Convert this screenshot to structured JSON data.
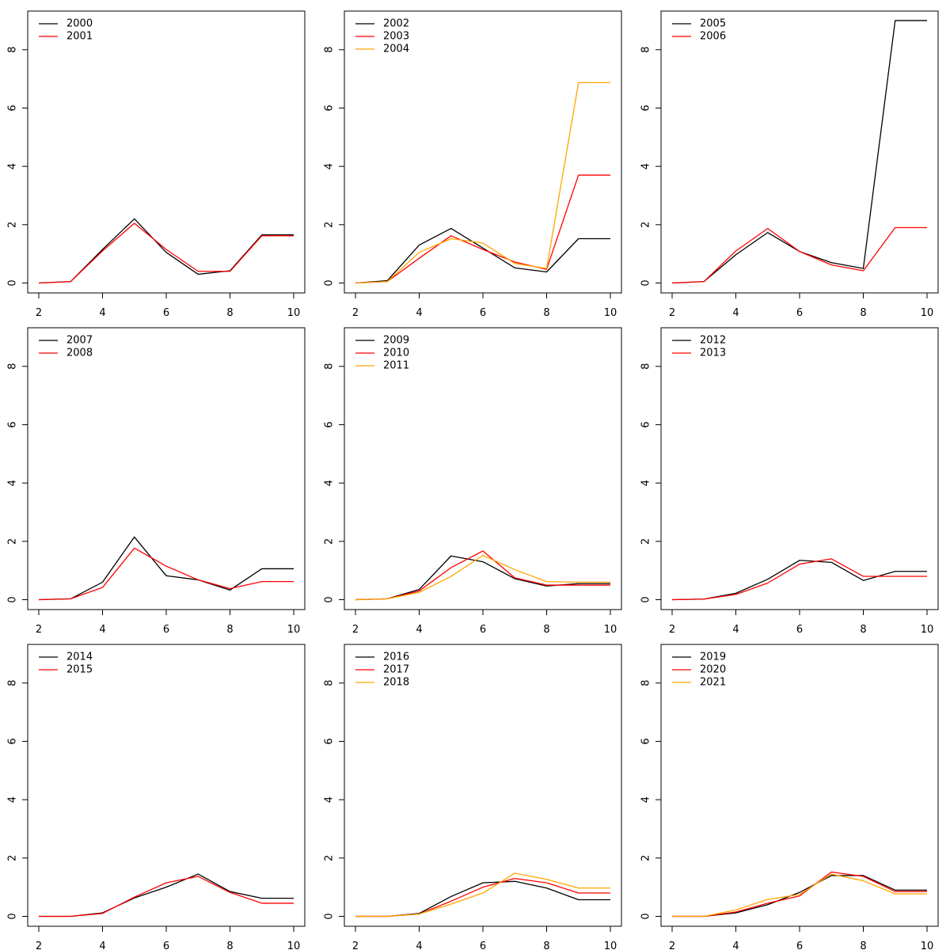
{
  "colors": {
    "black": "#000000",
    "red": "#ff0000",
    "orange": "#ffa500"
  },
  "chart_data": [
    {
      "type": "line",
      "xlim": [
        2,
        10
      ],
      "ylim": [
        0,
        9
      ],
      "grid": false,
      "legend": "top-left",
      "x": [
        2,
        3,
        4,
        5,
        6,
        7,
        8,
        9,
        10
      ],
      "xticks": [
        2,
        4,
        6,
        8,
        10
      ],
      "yticks": [
        0,
        2,
        4,
        6,
        8
      ],
      "series": [
        {
          "name": "2000",
          "color": "#000000",
          "values": [
            0,
            0.05,
            1.15,
            2.2,
            1.05,
            0.3,
            0.42,
            1.65,
            1.65
          ]
        },
        {
          "name": "2001",
          "color": "#ff0000",
          "values": [
            0,
            0.05,
            1.1,
            2.05,
            1.15,
            0.4,
            0.4,
            1.62,
            1.62
          ]
        }
      ]
    },
    {
      "type": "line",
      "xlim": [
        2,
        10
      ],
      "ylim": [
        0,
        9
      ],
      "grid": false,
      "legend": "top-left",
      "x": [
        2,
        3,
        4,
        5,
        6,
        7,
        8,
        9,
        10
      ],
      "xticks": [
        2,
        4,
        6,
        8,
        10
      ],
      "yticks": [
        0,
        2,
        4,
        6,
        8
      ],
      "series": [
        {
          "name": "2002",
          "color": "#000000",
          "values": [
            0,
            0.08,
            1.3,
            1.87,
            1.2,
            0.52,
            0.38,
            1.52,
            1.52
          ]
        },
        {
          "name": "2003",
          "color": "#ff0000",
          "values": [
            0,
            0.05,
            0.85,
            1.62,
            1.15,
            0.72,
            0.47,
            3.7,
            3.7
          ]
        },
        {
          "name": "2004",
          "color": "#ffa500",
          "values": [
            0,
            0.05,
            1.05,
            1.52,
            1.37,
            0.67,
            0.5,
            6.87,
            6.87
          ]
        }
      ]
    },
    {
      "type": "line",
      "xlim": [
        2,
        10
      ],
      "ylim": [
        0,
        9
      ],
      "grid": false,
      "legend": "top-left",
      "x": [
        2,
        3,
        4,
        5,
        6,
        7,
        8,
        9,
        10
      ],
      "xticks": [
        2,
        4,
        6,
        8,
        10
      ],
      "yticks": [
        0,
        2,
        4,
        6,
        8
      ],
      "series": [
        {
          "name": "2005",
          "color": "#000000",
          "values": [
            0,
            0.05,
            0.97,
            1.73,
            1.08,
            0.7,
            0.5,
            9.0,
            9.0
          ]
        },
        {
          "name": "2006",
          "color": "#ff0000",
          "values": [
            0,
            0.05,
            1.1,
            1.87,
            1.08,
            0.62,
            0.42,
            1.9,
            1.9
          ]
        }
      ]
    },
    {
      "type": "line",
      "xlim": [
        2,
        10
      ],
      "ylim": [
        0,
        9
      ],
      "grid": false,
      "legend": "top-left",
      "x": [
        2,
        3,
        4,
        5,
        6,
        7,
        8,
        9,
        10
      ],
      "xticks": [
        2,
        4,
        6,
        8,
        10
      ],
      "yticks": [
        0,
        2,
        4,
        6,
        8
      ],
      "series": [
        {
          "name": "2007",
          "color": "#000000",
          "values": [
            0,
            0.03,
            0.6,
            2.15,
            0.82,
            0.68,
            0.33,
            1.06,
            1.06
          ]
        },
        {
          "name": "2008",
          "color": "#ff0000",
          "values": [
            0,
            0.03,
            0.42,
            1.77,
            1.15,
            0.68,
            0.38,
            0.62,
            0.62
          ]
        }
      ]
    },
    {
      "type": "line",
      "xlim": [
        2,
        10
      ],
      "ylim": [
        0,
        9
      ],
      "grid": false,
      "legend": "top-left",
      "x": [
        2,
        3,
        4,
        5,
        6,
        7,
        8,
        9,
        10
      ],
      "xticks": [
        2,
        4,
        6,
        8,
        10
      ],
      "yticks": [
        0,
        2,
        4,
        6,
        8
      ],
      "series": [
        {
          "name": "2009",
          "color": "#000000",
          "values": [
            0,
            0.03,
            0.35,
            1.5,
            1.3,
            0.72,
            0.47,
            0.55,
            0.55
          ]
        },
        {
          "name": "2010",
          "color": "#ff0000",
          "values": [
            0,
            0.03,
            0.3,
            1.1,
            1.67,
            0.75,
            0.5,
            0.5,
            0.5
          ]
        },
        {
          "name": "2011",
          "color": "#ffa500",
          "values": [
            0,
            0.03,
            0.25,
            0.8,
            1.52,
            1.03,
            0.62,
            0.6,
            0.6
          ]
        }
      ]
    },
    {
      "type": "line",
      "xlim": [
        2,
        10
      ],
      "ylim": [
        0,
        9
      ],
      "grid": false,
      "legend": "top-left",
      "x": [
        2,
        3,
        4,
        5,
        6,
        7,
        8,
        9,
        10
      ],
      "xticks": [
        2,
        4,
        6,
        8,
        10
      ],
      "yticks": [
        0,
        2,
        4,
        6,
        8
      ],
      "series": [
        {
          "name": "2012",
          "color": "#000000",
          "values": [
            0,
            0.02,
            0.22,
            0.7,
            1.35,
            1.28,
            0.66,
            0.97,
            0.97
          ]
        },
        {
          "name": "2013",
          "color": "#ff0000",
          "values": [
            0,
            0.02,
            0.18,
            0.57,
            1.22,
            1.4,
            0.8,
            0.8,
            0.8
          ]
        }
      ]
    },
    {
      "type": "line",
      "xlim": [
        2,
        10
      ],
      "ylim": [
        0,
        9
      ],
      "grid": false,
      "legend": "top-left",
      "x": [
        2,
        3,
        4,
        5,
        6,
        7,
        8,
        9,
        10
      ],
      "xticks": [
        2,
        4,
        6,
        8,
        10
      ],
      "yticks": [
        0,
        2,
        4,
        6,
        8
      ],
      "series": [
        {
          "name": "2014",
          "color": "#000000",
          "values": [
            0,
            0,
            0.12,
            0.63,
            1.0,
            1.45,
            0.85,
            0.62,
            0.62
          ]
        },
        {
          "name": "2015",
          "color": "#ff0000",
          "values": [
            0,
            0,
            0.1,
            0.66,
            1.15,
            1.37,
            0.82,
            0.45,
            0.45
          ]
        }
      ]
    },
    {
      "type": "line",
      "xlim": [
        2,
        10
      ],
      "ylim": [
        0,
        9
      ],
      "grid": false,
      "legend": "top-left",
      "x": [
        2,
        3,
        4,
        5,
        6,
        7,
        8,
        9,
        10
      ],
      "xticks": [
        2,
        4,
        6,
        8,
        10
      ],
      "yticks": [
        0,
        2,
        4,
        6,
        8
      ],
      "series": [
        {
          "name": "2016",
          "color": "#000000",
          "values": [
            0,
            0,
            0.1,
            0.68,
            1.15,
            1.2,
            0.97,
            0.57,
            0.57
          ]
        },
        {
          "name": "2017",
          "color": "#ff0000",
          "values": [
            0,
            0,
            0.08,
            0.52,
            1.0,
            1.3,
            1.15,
            0.8,
            0.8
          ]
        },
        {
          "name": "2018",
          "color": "#ffa500",
          "values": [
            0,
            0,
            0.08,
            0.42,
            0.8,
            1.48,
            1.27,
            0.97,
            0.97
          ]
        }
      ]
    },
    {
      "type": "line",
      "xlim": [
        2,
        10
      ],
      "ylim": [
        0,
        9
      ],
      "grid": false,
      "legend": "top-left",
      "x": [
        2,
        3,
        4,
        5,
        6,
        7,
        8,
        9,
        10
      ],
      "xticks": [
        2,
        4,
        6,
        8,
        10
      ],
      "yticks": [
        0,
        2,
        4,
        6,
        8
      ],
      "series": [
        {
          "name": "2019",
          "color": "#000000",
          "values": [
            0,
            0,
            0.12,
            0.4,
            0.82,
            1.4,
            1.4,
            0.9,
            0.9
          ]
        },
        {
          "name": "2020",
          "color": "#ff0000",
          "values": [
            0,
            0,
            0.15,
            0.45,
            0.7,
            1.52,
            1.37,
            0.85,
            0.85
          ]
        },
        {
          "name": "2021",
          "color": "#ffa500",
          "values": [
            0,
            0,
            0.22,
            0.58,
            0.75,
            1.45,
            1.22,
            0.77,
            0.77
          ]
        }
      ]
    }
  ]
}
